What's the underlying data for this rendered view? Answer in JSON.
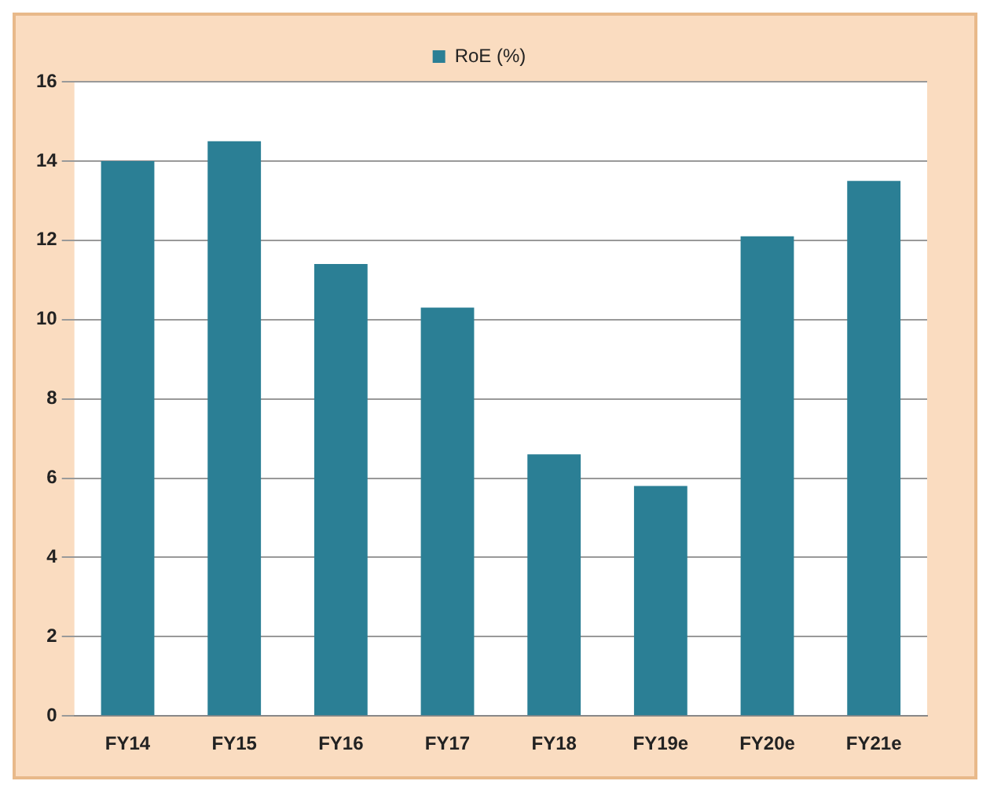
{
  "chart_data": {
    "type": "bar",
    "categories": [
      "FY14",
      "FY15",
      "FY16",
      "FY17",
      "FY18",
      "FY19e",
      "FY20e",
      "FY21e"
    ],
    "series": [
      {
        "name": "RoE (%)",
        "color": "#2b7f95",
        "values": [
          14.0,
          14.5,
          11.4,
          10.3,
          6.6,
          5.8,
          12.1,
          13.5
        ]
      }
    ],
    "ylim": [
      0,
      16
    ],
    "yticks": [
      0,
      2,
      4,
      6,
      8,
      10,
      12,
      14,
      16
    ],
    "grid": "y",
    "legend": "top"
  }
}
